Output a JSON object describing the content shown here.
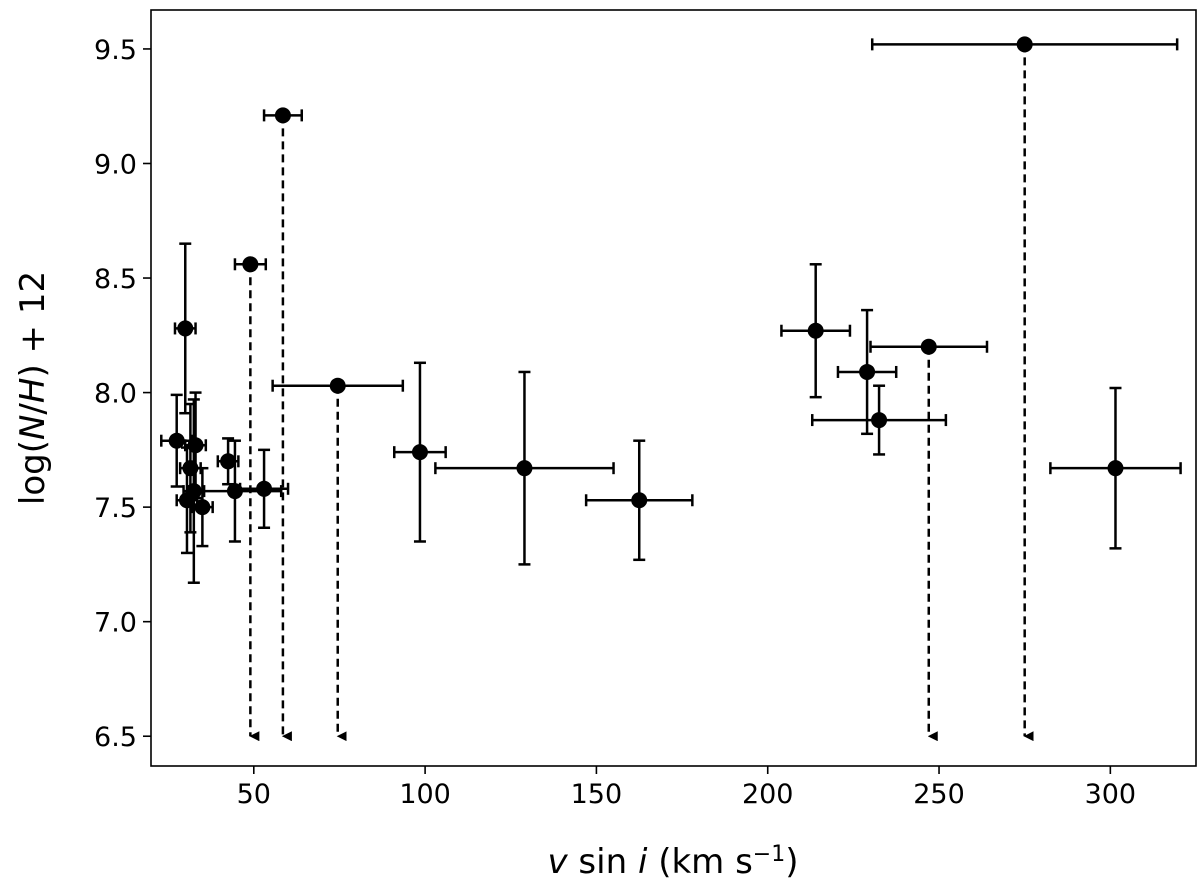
{
  "chart_data": {
    "type": "scatter",
    "title": "",
    "xlabel": {
      "parts": [
        {
          "text": "v",
          "style": "italic"
        },
        {
          "text": " sin ",
          "style": "normal"
        },
        {
          "text": "i",
          "style": "italic"
        },
        {
          "text": " (km s",
          "style": "normal"
        },
        {
          "text": "−1",
          "style": "superscript"
        },
        {
          "text": ")",
          "style": "normal"
        }
      ]
    },
    "ylabel": {
      "parts": [
        {
          "text": "log(",
          "style": "normal"
        },
        {
          "text": "N",
          "style": "italic"
        },
        {
          "text": "/",
          "style": "normal"
        },
        {
          "text": "H",
          "style": "italic"
        },
        {
          "text": ") + 12",
          "style": "normal"
        }
      ]
    },
    "xlim": [
      20,
      325
    ],
    "ylim": [
      6.37,
      9.67
    ],
    "x_ticks": [
      50,
      100,
      150,
      200,
      250,
      300
    ],
    "y_ticks": [
      6.5,
      7.0,
      7.5,
      8.0,
      8.5,
      9.0,
      9.5
    ],
    "grid": false,
    "marker_color": "#000000",
    "upper_limit_arrow_to": 6.5,
    "points": [
      {
        "x": 27.5,
        "y": 7.79,
        "xerr": 4.5,
        "yerr": 0.2,
        "upper_limit": false
      },
      {
        "x": 30.0,
        "y": 8.28,
        "xerr": 3.0,
        "yerr": 0.37,
        "upper_limit": false
      },
      {
        "x": 30.5,
        "y": 7.53,
        "xerr": 3.0,
        "yerr": 0.23,
        "upper_limit": false
      },
      {
        "x": 31.5,
        "y": 7.67,
        "xerr": 3.0,
        "yerr": 0.28,
        "upper_limit": false
      },
      {
        "x": 32.5,
        "y": 7.57,
        "xerr": 3.0,
        "yerr": 0.4,
        "upper_limit": false
      },
      {
        "x": 33.0,
        "y": 7.77,
        "xerr": 3.0,
        "yerr": 0.23,
        "upper_limit": false
      },
      {
        "x": 35.0,
        "y": 7.5,
        "xerr": 3.0,
        "yerr": 0.17,
        "upper_limit": false
      },
      {
        "x": 42.5,
        "y": 7.7,
        "xerr": 3.0,
        "yerr": 0.1,
        "upper_limit": false
      },
      {
        "x": 44.5,
        "y": 7.57,
        "xerr": 13.5,
        "yerr": 0.22,
        "upper_limit": false
      },
      {
        "x": 53.0,
        "y": 7.58,
        "xerr": 7.0,
        "yerr": 0.17,
        "upper_limit": false
      },
      {
        "x": 49.0,
        "y": 8.56,
        "xerr": 4.5,
        "yerr": 0,
        "upper_limit": true
      },
      {
        "x": 58.5,
        "y": 9.21,
        "xerr": 5.5,
        "yerr": 0,
        "upper_limit": true
      },
      {
        "x": 74.5,
        "y": 8.03,
        "xerr": 19.0,
        "yerr": 0,
        "upper_limit": true
      },
      {
        "x": 98.5,
        "y": 7.74,
        "xerr": 7.5,
        "yerr": 0.39,
        "upper_limit": false
      },
      {
        "x": 129.0,
        "y": 7.67,
        "xerr": 26.0,
        "yerr": 0.42,
        "upper_limit": false
      },
      {
        "x": 162.5,
        "y": 7.53,
        "xerr": 15.5,
        "yerr": 0.26,
        "upper_limit": false
      },
      {
        "x": 214.0,
        "y": 8.27,
        "xerr": 10.0,
        "yerr": 0.29,
        "upper_limit": false
      },
      {
        "x": 229.0,
        "y": 8.09,
        "xerr": 8.5,
        "yerr": 0.27,
        "upper_limit": false
      },
      {
        "x": 232.5,
        "y": 7.88,
        "xerr": 19.5,
        "yerr": 0.15,
        "upper_limit": false
      },
      {
        "x": 247.0,
        "y": 8.2,
        "xerr": 17.0,
        "yerr": 0,
        "upper_limit": true
      },
      {
        "x": 275.0,
        "y": 9.52,
        "xerr": 44.5,
        "yerr": 0,
        "upper_limit": true
      },
      {
        "x": 301.5,
        "y": 7.67,
        "xerr": 19.0,
        "yerr": 0.35,
        "upper_limit": false
      }
    ]
  }
}
